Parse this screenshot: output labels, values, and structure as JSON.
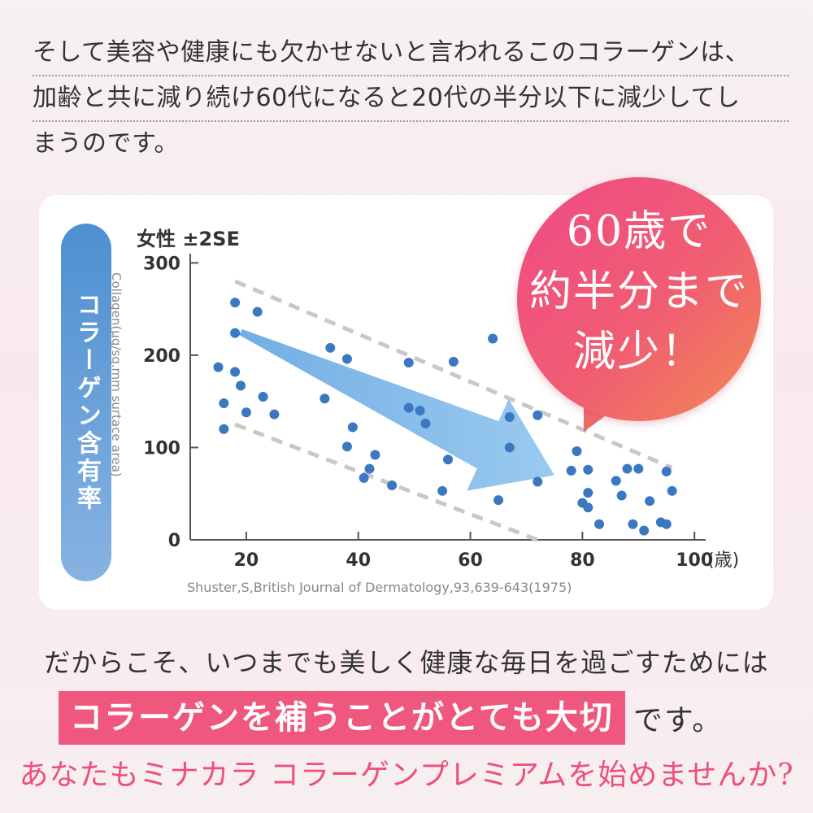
{
  "intro": {
    "lines": [
      "そして美容や健康にも欠かせないと言われるこのコラーゲンは、",
      "加齢と共に減り続け60代になると20代の半分以下に減少してし",
      "まうのです。"
    ]
  },
  "chart_data": {
    "type": "scatter",
    "title": "女性 ±2SE",
    "ylabel_pill": "コラーゲン含有率",
    "ylabel": "Collagen(μg/sq.mm surtace area)",
    "xlabel": "(歳)",
    "xlim": [
      10,
      102
    ],
    "ylim": [
      0,
      310
    ],
    "xticks": [
      20,
      40,
      60,
      80,
      100
    ],
    "yticks": [
      0,
      100,
      200,
      300
    ],
    "source": "Shuster,S,British Journal of Dermatology,93,639-643(1975)",
    "points": [
      [
        18,
        257
      ],
      [
        22,
        247
      ],
      [
        18,
        224
      ],
      [
        15,
        187
      ],
      [
        18,
        182
      ],
      [
        19,
        167
      ],
      [
        23,
        155
      ],
      [
        16,
        148
      ],
      [
        20,
        138
      ],
      [
        25,
        136
      ],
      [
        16,
        120
      ],
      [
        35,
        208
      ],
      [
        38,
        196
      ],
      [
        34,
        153
      ],
      [
        39,
        122
      ],
      [
        38,
        101
      ],
      [
        43,
        92
      ],
      [
        42,
        77
      ],
      [
        41,
        67
      ],
      [
        46,
        59
      ],
      [
        49,
        192
      ],
      [
        49,
        143
      ],
      [
        51,
        140
      ],
      [
        52,
        126
      ],
      [
        57,
        193
      ],
      [
        56,
        87
      ],
      [
        55,
        53
      ],
      [
        64,
        218
      ],
      [
        67,
        133
      ],
      [
        72,
        135
      ],
      [
        67,
        100
      ],
      [
        72,
        63
      ],
      [
        65,
        43
      ],
      [
        79,
        96
      ],
      [
        78,
        75
      ],
      [
        81,
        76
      ],
      [
        86,
        64
      ],
      [
        88,
        77
      ],
      [
        90,
        77
      ],
      [
        95,
        74
      ],
      [
        81,
        51
      ],
      [
        87,
        48
      ],
      [
        96,
        53
      ],
      [
        80,
        40
      ],
      [
        81,
        35
      ],
      [
        92,
        42
      ],
      [
        83,
        17
      ],
      [
        89,
        17
      ],
      [
        94,
        19
      ],
      [
        95,
        17
      ],
      [
        91,
        10
      ]
    ],
    "trend_band": {
      "upper": [
        [
          18,
          280
        ],
        [
          96,
          78
        ]
      ],
      "lower": [
        [
          18,
          125
        ],
        [
          72,
          0
        ]
      ]
    },
    "arrow": {
      "from": [
        19,
        225
      ],
      "to": [
        75,
        70
      ]
    },
    "colors": {
      "points": "#3a78c2",
      "arrow": "#8fc5ee",
      "band": "#c8c8c8"
    }
  },
  "callout": {
    "lines": [
      "60歳で",
      "約半分まで",
      "減少！"
    ]
  },
  "closing": {
    "line1": "だからこそ、いつまでも美しく健康な毎日を過ごすためには",
    "highlight": "コラーゲンを補うことがとても大切",
    "suffix": "です。",
    "cta": "あなたもミナカラ コラーゲンプレミアムを始めませんか?"
  }
}
